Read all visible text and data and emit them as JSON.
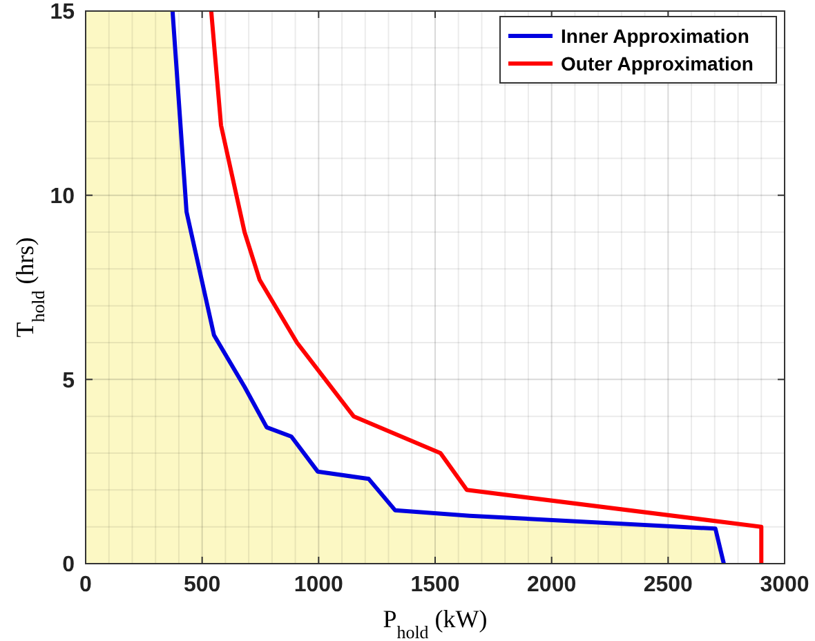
{
  "chart_data": {
    "type": "line",
    "xlabel": "P$_{hold}$ (kW)",
    "ylabel": "T$_{hold}$ (hrs)",
    "xlim": [
      0,
      3000
    ],
    "ylim": [
      0,
      15
    ],
    "xticks": [
      0,
      500,
      1000,
      1500,
      2000,
      2500,
      3000
    ],
    "yticks": [
      0,
      5,
      10,
      15
    ],
    "grid": true,
    "legend": "top right",
    "line_style": "solid",
    "marker": "none",
    "series": [
      {
        "type": "area",
        "color": "#fcf8c4",
        "x": [
          0,
          373,
          433,
          551,
          682,
          777,
          883,
          996,
          1215,
          1328,
          1648,
          2703,
          2739
        ],
        "values": [
          15,
          15,
          9.55,
          6.2,
          4.8,
          3.7,
          3.45,
          2.5,
          2.3,
          1.45,
          1.3,
          0.95,
          0
        ]
      },
      {
        "name": "Inner Approximation",
        "color": "#0000e0",
        "x": [
          373,
          433,
          551,
          682,
          777,
          883,
          996,
          1215,
          1328,
          1648,
          2703,
          2739
        ],
        "values": [
          15,
          9.55,
          6.2,
          4.8,
          3.7,
          3.45,
          2.5,
          2.3,
          1.45,
          1.3,
          0.95,
          0
        ]
      },
      {
        "name": "Outer Approximation",
        "color": "#ff0000",
        "x": [
          539,
          581,
          682,
          747,
          907,
          1150,
          1523,
          1636,
          2900,
          2900
        ],
        "values": [
          15,
          11.9,
          9.0,
          7.7,
          6.0,
          4.0,
          3.0,
          2.0,
          1.0,
          0
        ]
      }
    ]
  }
}
